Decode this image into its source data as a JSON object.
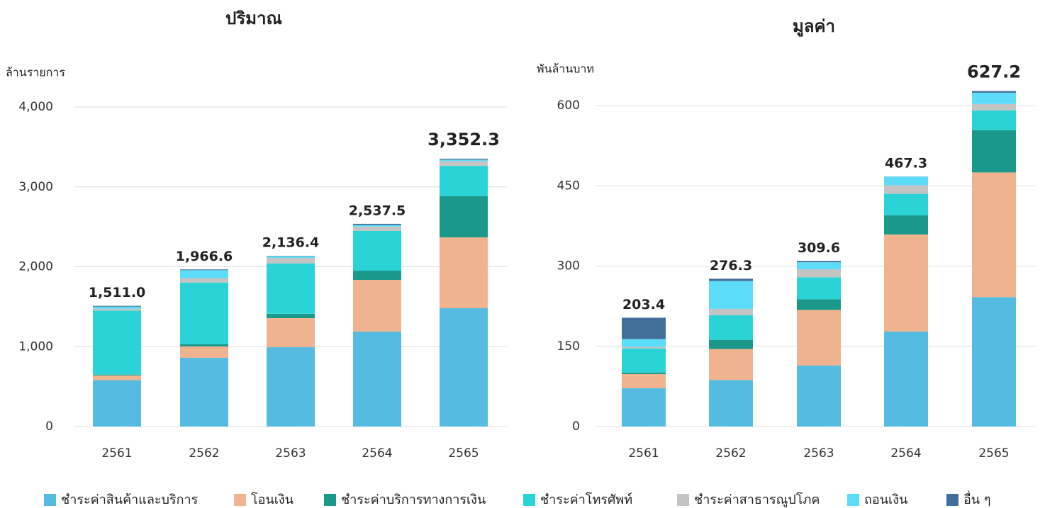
{
  "chart_data": [
    {
      "type": "bar",
      "stacked": true,
      "title": "ปริมาณ",
      "y_label": "ล้านรายการ",
      "categories": [
        "2561",
        "2562",
        "2563",
        "2564",
        "2565"
      ],
      "series": [
        {
          "name": "ชำระค่าสินค้าและบริการ",
          "color": "#56bbe0",
          "values": [
            580,
            860,
            993,
            1188,
            1481
          ]
        },
        {
          "name": "โอนเงิน",
          "color": "#efb48f",
          "values": [
            60,
            142,
            364,
            648,
            887
          ]
        },
        {
          "name": "ชำระค่าบริการทางการเงิน",
          "color": "#1a998a",
          "values": [
            10,
            30,
            55,
            115,
            515
          ]
        },
        {
          "name": "ชำระค่าโทรศัพท์",
          "color": "#2ad4d6",
          "values": [
            800,
            770,
            630,
            497,
            380
          ]
        },
        {
          "name": "ชำระค่าสาธารณูปโภค",
          "color": "#c4c4c4",
          "values": [
            25,
            55,
            70,
            55,
            60
          ]
        },
        {
          "name": "ถอนเงิน",
          "color": "#5cdcf8",
          "values": [
            26,
            100,
            20,
            20,
            18
          ]
        },
        {
          "name": "อื่น ๆ",
          "color": "#426f99",
          "values": [
            10,
            9.6,
            4.4,
            14.5,
            11.3
          ]
        }
      ],
      "totals": [
        1511.0,
        1966.6,
        2136.4,
        2537.5,
        3352.3
      ],
      "total_labels": [
        "1,511.0",
        "1,966.6",
        "2,136.4",
        "2,537.5",
        "3,352.3"
      ],
      "ylim": [
        0,
        4000
      ],
      "yticks": [
        0,
        {
          "value": 1000,
          "label": "1,000"
        },
        {
          "value": 2000,
          "label": "2,000"
        },
        {
          "value": 3000,
          "label": "3,000"
        },
        {
          "value": 4000,
          "label": "4,000"
        }
      ],
      "grid": true
    },
    {
      "type": "bar",
      "stacked": true,
      "title": "มูลค่า",
      "y_label": "พันล้านบาท",
      "categories": [
        "2561",
        "2562",
        "2563",
        "2564",
        "2565"
      ],
      "series": [
        {
          "values": [
            71.5,
            87,
            114,
            177.5,
            242
          ]
        },
        {
          "values": [
            26.5,
            58,
            104,
            181.5,
            233
          ]
        },
        {
          "values": [
            3,
            17,
            20,
            36,
            79
          ]
        },
        {
          "values": [
            45,
            46,
            41,
            40,
            37
          ]
        },
        {
          "values": [
            3,
            12,
            15,
            16,
            12
          ]
        },
        {
          "values": [
            14.5,
            52,
            13,
            16,
            21
          ]
        },
        {
          "values": [
            39.9,
            4.3,
            2.6,
            0.3,
            3.2
          ]
        }
      ],
      "totals": [
        203.4,
        276.3,
        309.6,
        467.3,
        627.2
      ],
      "total_labels": [
        "203.4",
        "276.3",
        "309.6",
        "467.3",
        "627.2"
      ],
      "ylim": [
        0,
        600
      ],
      "yticks": [
        0,
        150,
        300,
        450,
        600
      ],
      "grid": true
    }
  ]
}
